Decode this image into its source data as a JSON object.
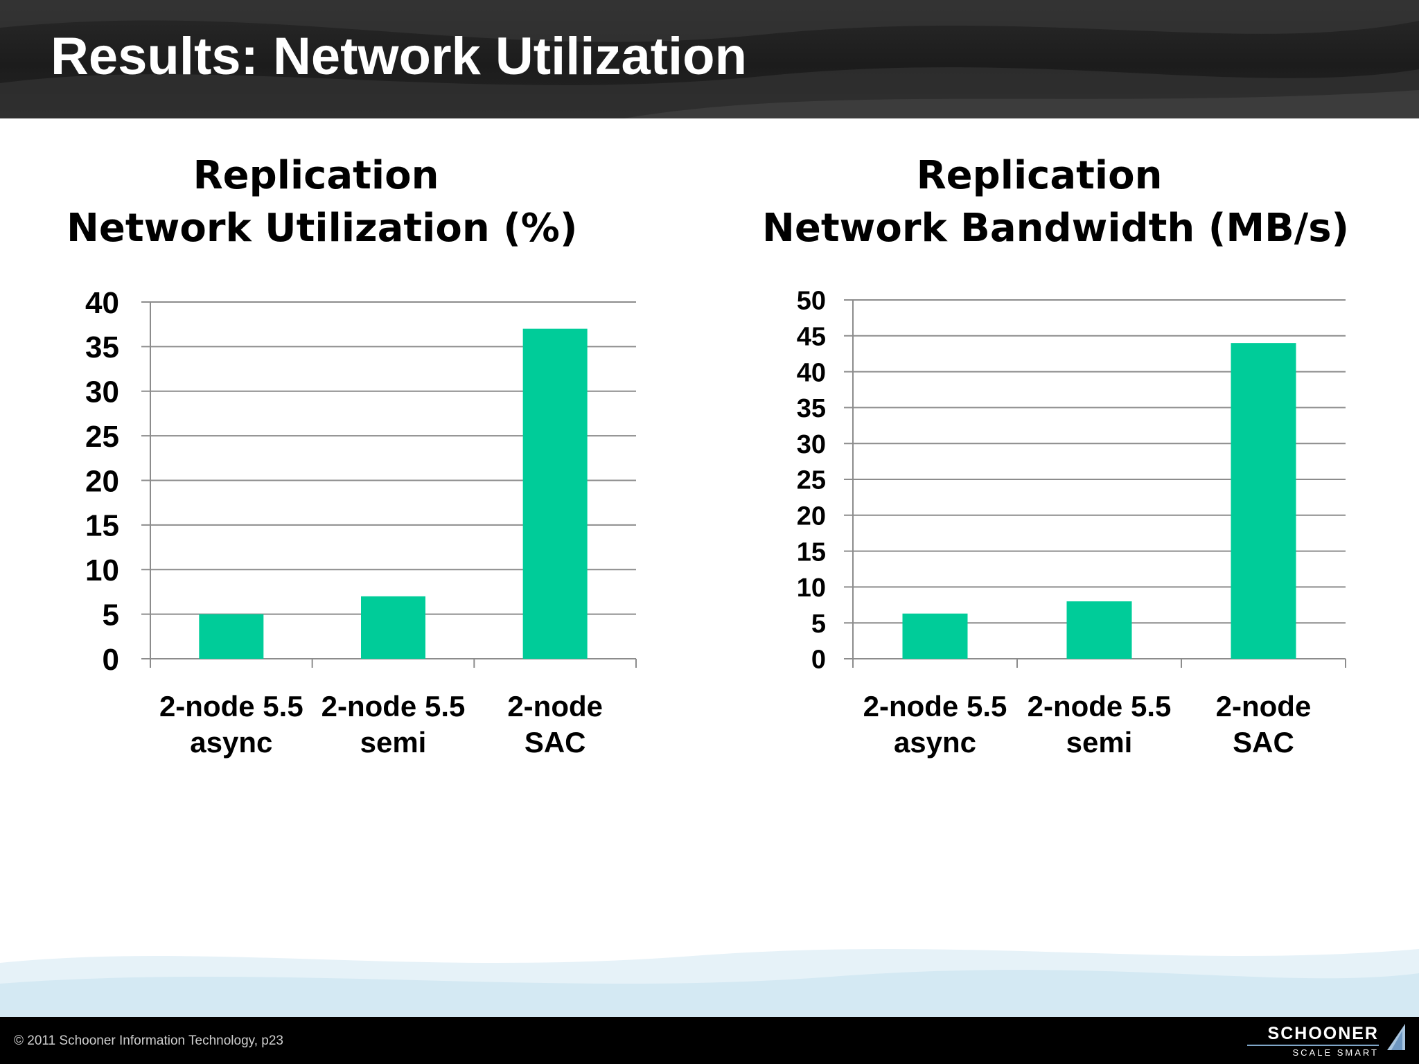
{
  "slide": {
    "title": "Results: Network Utilization"
  },
  "colors": {
    "bar": "#00cc99",
    "grid": "#8c8c8c",
    "header": "#1c1c1c",
    "footer": "#000000"
  },
  "chart_data": [
    {
      "type": "bar",
      "title_lines": [
        "Replication",
        "Network Utilization (%)"
      ],
      "categories": [
        [
          "2-node 5.5",
          "async"
        ],
        [
          "2-node 5.5",
          "semi"
        ],
        [
          "2-node",
          "SAC"
        ]
      ],
      "values": [
        5,
        7,
        37
      ],
      "ylim": [
        0,
        40
      ],
      "ystep": 5,
      "grid": true,
      "legend": "none"
    },
    {
      "type": "bar",
      "title_lines": [
        "Replication",
        "Network Bandwidth (MB/s)"
      ],
      "categories": [
        [
          "2-node 5.5",
          "async"
        ],
        [
          "2-node 5.5",
          "semi"
        ],
        [
          "2-node",
          "SAC"
        ]
      ],
      "values": [
        6.3,
        8,
        44
      ],
      "ylim": [
        0,
        50
      ],
      "ystep": 5,
      "grid": true,
      "legend": "none"
    }
  ],
  "footer": {
    "copyright": "© 2011  Schooner Information Technology, p23",
    "logo_name": "SCHOONER",
    "logo_tagline": "SCALE SMART",
    "logo_icon": "sail-icon"
  }
}
